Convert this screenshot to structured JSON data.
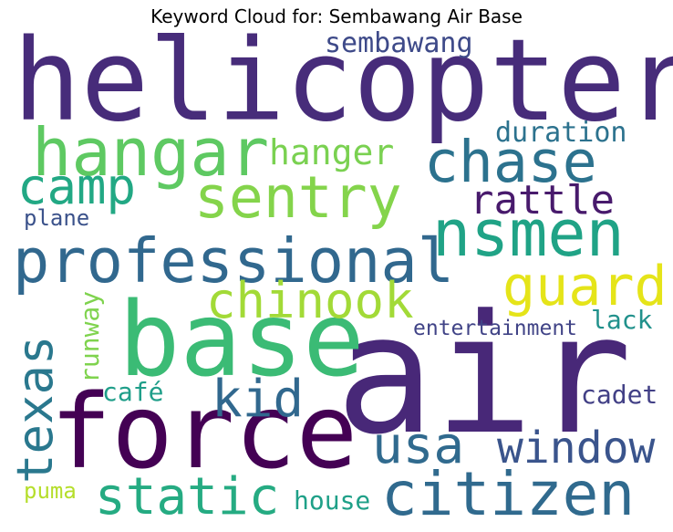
{
  "title": "Keyword Cloud for: Sembawang Air Base",
  "words": [
    {
      "text": "helicopter",
      "color": "#472c7a"
    },
    {
      "text": "air",
      "color": "#482878"
    },
    {
      "text": "base",
      "color": "#3bbb75"
    },
    {
      "text": "force",
      "color": "#440154"
    },
    {
      "text": "hangar",
      "color": "#5ec962"
    },
    {
      "text": "sentry",
      "color": "#84d44b"
    },
    {
      "text": "chase",
      "color": "#2c728e"
    },
    {
      "text": "nsmen",
      "color": "#20a386"
    },
    {
      "text": "professional",
      "color": "#31688e"
    },
    {
      "text": "camp",
      "color": "#22a884"
    },
    {
      "text": "hanger",
      "color": "#7ad151"
    },
    {
      "text": "rattle",
      "color": "#481a6c"
    },
    {
      "text": "sembawang",
      "color": "#3e4a89"
    },
    {
      "text": "duration",
      "color": "#2c728e"
    },
    {
      "text": "plane",
      "color": "#3b528b"
    },
    {
      "text": "chinook",
      "color": "#a2da37"
    },
    {
      "text": "guard",
      "color": "#e5e419"
    },
    {
      "text": "lack",
      "color": "#21918c"
    },
    {
      "text": "entertainment",
      "color": "#414487"
    },
    {
      "text": "texas",
      "color": "#2a788e"
    },
    {
      "text": "runway",
      "color": "#7fd34e"
    },
    {
      "text": "kid",
      "color": "#31688e"
    },
    {
      "text": "café",
      "color": "#1f9e89"
    },
    {
      "text": "cadet",
      "color": "#424086"
    },
    {
      "text": "usa",
      "color": "#306a8e"
    },
    {
      "text": "window",
      "color": "#3a548c"
    },
    {
      "text": "static",
      "color": "#25ab82"
    },
    {
      "text": "citizen",
      "color": "#306a8e"
    },
    {
      "text": "house",
      "color": "#1fa088"
    },
    {
      "text": "puma",
      "color": "#b5de2b"
    }
  ]
}
